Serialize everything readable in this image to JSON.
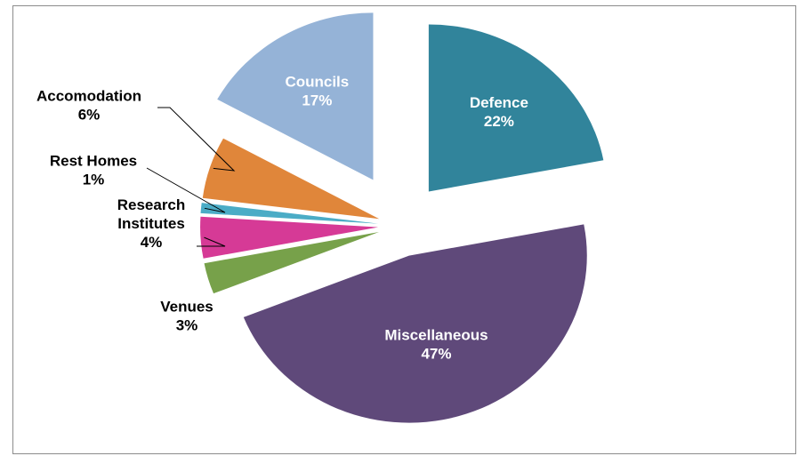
{
  "chart_data": {
    "type": "pie",
    "title": "",
    "slices": [
      {
        "label": "Defence",
        "value": 22,
        "display": "22%",
        "color": "#31849b"
      },
      {
        "label": "Miscellaneous",
        "value": 47,
        "display": "47%",
        "color": "#5f497a"
      },
      {
        "label": "Venues",
        "value": 3,
        "display": "3%",
        "color": "#77a14a"
      },
      {
        "label": "Research Institutes",
        "value": 4,
        "display": "4%",
        "color": "#d63a96"
      },
      {
        "label": "Rest Homes",
        "value": 1,
        "display": "1%",
        "color": "#4bacc6"
      },
      {
        "label": "Accomodation",
        "value": 6,
        "display": "6%",
        "color": "#e0863a"
      },
      {
        "label": "Councils",
        "value": 17,
        "display": "17%",
        "color": "#95b3d7"
      }
    ],
    "exploded": true,
    "legend": "none"
  }
}
